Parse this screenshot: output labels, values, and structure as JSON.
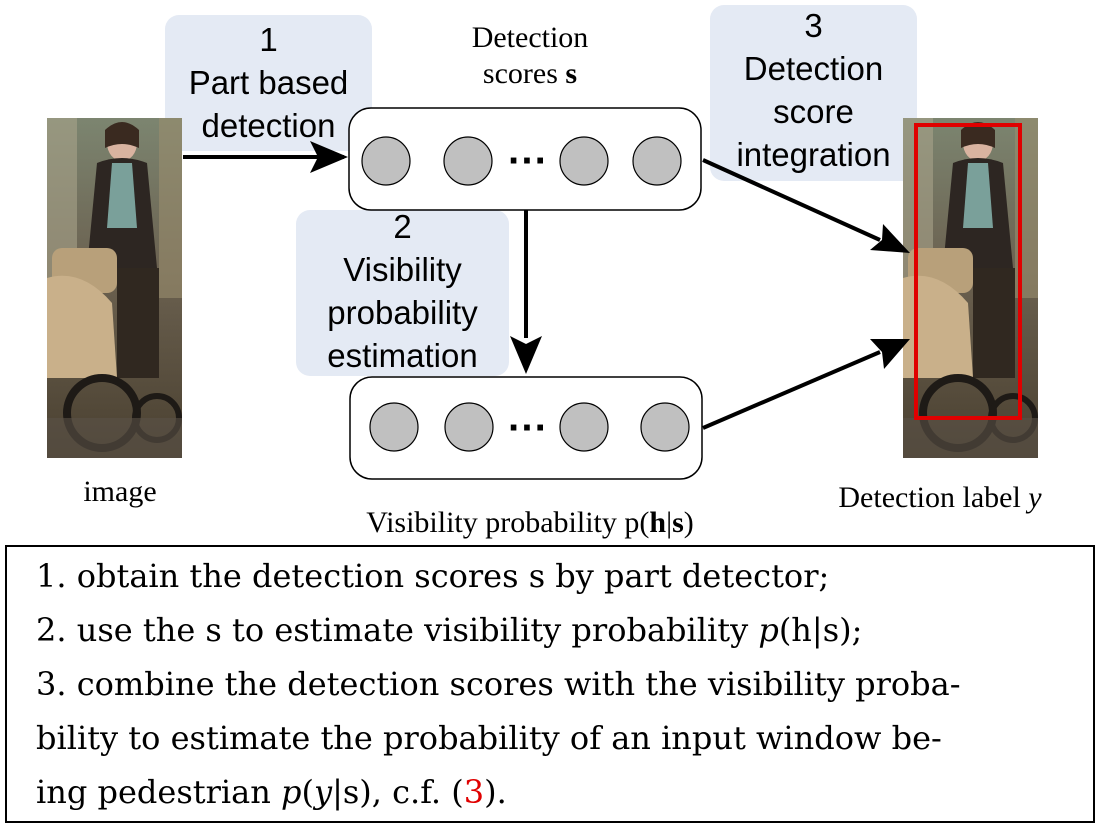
{
  "steps": [
    {
      "number": "1",
      "lines": [
        "Part based",
        "detection"
      ]
    },
    {
      "number": "2",
      "lines": [
        "Visibility",
        "probability",
        "estimation"
      ]
    },
    {
      "number": "3",
      "lines": [
        "Detection",
        "score",
        "integration"
      ]
    }
  ],
  "labels": {
    "scores_line1": "Detection",
    "scores_line2": "scores ",
    "scores_symbol": "s",
    "image": "image",
    "visibility_prefix": "Visibility probability p(",
    "visibility_h": "h",
    "visibility_bar": "|",
    "visibility_s": "s",
    "visibility_close": ")",
    "detection_label": "Detection label ",
    "detection_label_var": "y",
    "ellipsis": "···"
  },
  "notes": {
    "line1": "1. obtain the detection scores s by part detector;",
    "line2_a": "2. use the s to estimate visibility probability ",
    "line2_p": "p",
    "line2_b": "(h|s);",
    "line3": "3. combine the detection scores with the visibility proba-",
    "line4": "bility to estimate the probability of an input window be-",
    "line5_a": "ing pedestrian ",
    "line5_p": "p",
    "line5_b": "(",
    "line5_y": "y",
    "line5_c": "|s), c.f. (",
    "line5_ref": "3",
    "line5_d": ")."
  },
  "colors": {
    "callout_bg": "#e4eaf4",
    "node_fill": "#c0c0c0",
    "detection_box": "#e00000",
    "citation": "#e00000"
  }
}
